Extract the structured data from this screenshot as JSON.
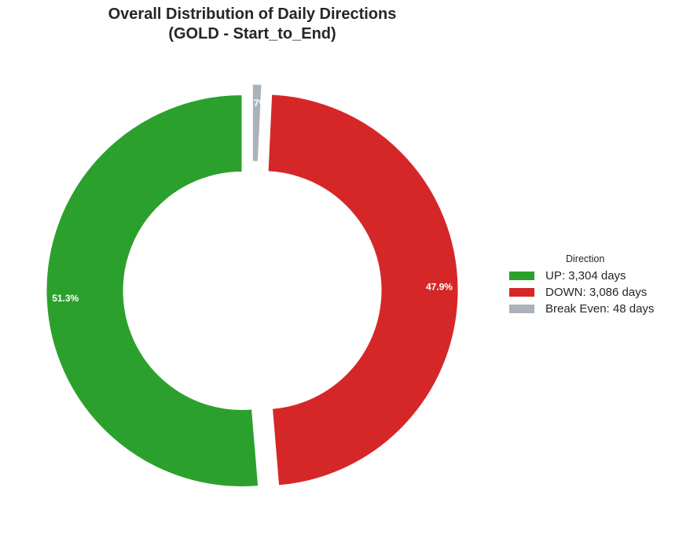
{
  "title_line1": "Overall Distribution of Daily Directions",
  "title_line2": "(GOLD - Start_to_End)",
  "legend_title": "Direction",
  "chart_data": {
    "type": "pie",
    "style": "donut",
    "title": "Overall Distribution of Daily Directions (GOLD - Start_to_End)",
    "slices": [
      {
        "name": "UP",
        "value": 3304,
        "legend": "UP: 3,304 days",
        "pct_label": "51.3%",
        "color": "#2ca02c"
      },
      {
        "name": "DOWN",
        "value": 3086,
        "legend": "DOWN: 3,086 days",
        "pct_label": "47.9%",
        "color": "#d62728"
      },
      {
        "name": "Break Even",
        "value": 48,
        "legend": "Break Even: 48 days",
        "pct_label": "0.7%",
        "color": "#abb2b9"
      }
    ],
    "legend_placement": "right"
  }
}
